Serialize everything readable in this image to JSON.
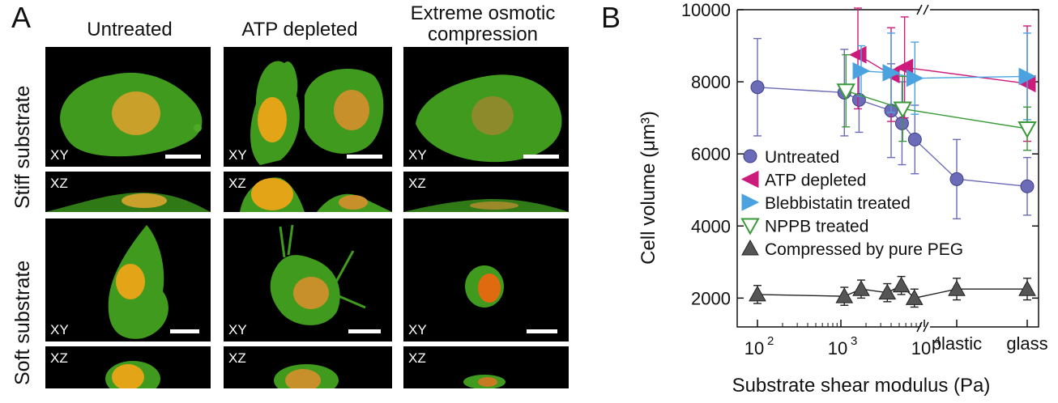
{
  "panel_a": {
    "letter": "A",
    "columns": [
      "Untreated",
      "ATP depleted",
      "Extreme osmotic compression"
    ],
    "rows": [
      "Stiff substrate",
      "Soft substrate"
    ],
    "view_labels": {
      "xy": "XY",
      "xz": "XZ"
    },
    "colors": {
      "cytoplasm": "#3f9a1e",
      "nucleus": "#e0a020",
      "background": "#000000"
    }
  },
  "panel_b": {
    "letter": "B",
    "chart_data": {
      "type": "scatter",
      "ylabel": "Cell volume (μm³)",
      "xlabel": "Substrate shear modulus (Pa)",
      "ylim": [
        1200,
        10000
      ],
      "yticks": [
        2000,
        4000,
        6000,
        8000,
        10000
      ],
      "x_scale": "log with two categorical positions after axis break",
      "xticks": [
        {
          "label_base": "10",
          "label_exp": "2",
          "x": 100
        },
        {
          "label_base": "10",
          "label_exp": "3",
          "x": 1000
        },
        {
          "label_base": "10",
          "label_exp": "4",
          "x": 10000
        },
        {
          "label": "plastic",
          "x": "plastic"
        },
        {
          "label": "glass",
          "x": "glass"
        }
      ],
      "axis_break": "//",
      "legend_position": "bottom-left",
      "series": [
        {
          "name": "Untreated",
          "marker": "circle",
          "color": "#6b6bb8",
          "points": [
            {
              "x": 100,
              "y": 7850,
              "err": 1350
            },
            {
              "x": 1100,
              "y": 7700,
              "err": 1200
            },
            {
              "x": 1650,
              "y": 7500,
              "err": 900
            },
            {
              "x": 4000,
              "y": 7200,
              "err": 1300
            },
            {
              "x": 5400,
              "y": 6850,
              "err": 1150
            },
            {
              "x": 7700,
              "y": 6400,
              "err": 950
            },
            {
              "x": "plastic",
              "y": 5300,
              "err": 1100
            },
            {
              "x": "glass",
              "y": 5100,
              "err": 800
            }
          ]
        },
        {
          "name": "ATP depleted",
          "marker": "triangle-left",
          "color": "#cc1b7b",
          "points": [
            {
              "x": 1600,
              "y": 8750,
              "err": 1500
            },
            {
              "x": 4000,
              "y": 8200,
              "err": 1300
            },
            {
              "x": 5800,
              "y": 8400,
              "err": 1400
            },
            {
              "x": "glass",
              "y": 7950,
              "err": 1600
            }
          ]
        },
        {
          "name": "Blebbistatin treated",
          "marker": "triangle-right",
          "color": "#4aa3e0",
          "points": [
            {
              "x": 1750,
              "y": 8300,
              "err": 700
            },
            {
              "x": 4000,
              "y": 8250,
              "err": 1100
            },
            {
              "x": 7700,
              "y": 8100,
              "err": 1000
            },
            {
              "x": "glass",
              "y": 8150,
              "err": 1200
            }
          ]
        },
        {
          "name": "NPPB treated",
          "marker": "triangle-down-open",
          "color": "#3a9a3a",
          "points": [
            {
              "x": 1150,
              "y": 7750,
              "err": 1000
            },
            {
              "x": 5500,
              "y": 7250,
              "err": 900
            },
            {
              "x": "glass",
              "y": 6700,
              "err": 600
            }
          ]
        },
        {
          "name": "Compressed by pure PEG",
          "marker": "triangle-up",
          "color": "#555555",
          "points": [
            {
              "x": 100,
              "y": 2100,
              "err": 250
            },
            {
              "x": 1100,
              "y": 2050,
              "err": 250
            },
            {
              "x": 1750,
              "y": 2250,
              "err": 250
            },
            {
              "x": 3600,
              "y": 2150,
              "err": 250
            },
            {
              "x": 5300,
              "y": 2350,
              "err": 250
            },
            {
              "x": 7600,
              "y": 2000,
              "err": 250
            },
            {
              "x": "plastic",
              "y": 2250,
              "err": 300
            },
            {
              "x": "glass",
              "y": 2250,
              "err": 300
            }
          ]
        }
      ]
    }
  }
}
